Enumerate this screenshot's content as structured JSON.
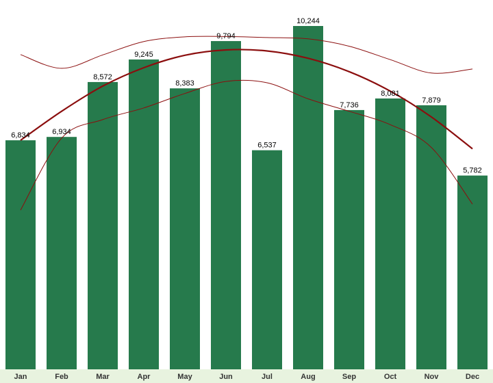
{
  "chart_data": {
    "type": "bar",
    "categories": [
      "Jan",
      "Feb",
      "Mar",
      "Apr",
      "May",
      "Jun",
      "Jul",
      "Aug",
      "Sep",
      "Oct",
      "Nov",
      "Dec"
    ],
    "values": [
      6834,
      6934,
      8572,
      9245,
      8383,
      9794,
      6537,
      10244,
      7736,
      8081,
      7879,
      5782
    ],
    "value_labels": [
      "6,834",
      "6,934",
      "8,572",
      "9,245",
      "8,383",
      "9,794",
      "6,537",
      "10,244",
      "7,736",
      "8,081",
      "7,879",
      "5,782"
    ],
    "trend": {
      "fit": [
        6834,
        7700,
        8450,
        9000,
        9370,
        9530,
        9500,
        9280,
        8880,
        8300,
        7530,
        6580
      ],
      "upper": [
        9390,
        8980,
        9380,
        9780,
        9920,
        9930,
        9900,
        9860,
        9640,
        9240,
        8840,
        8960
      ],
      "lower": [
        4750,
        6900,
        7450,
        7800,
        8230,
        8590,
        8550,
        8070,
        7700,
        7300,
        6620,
        4930
      ]
    },
    "ylim": [
      0,
      10500
    ],
    "grid": false,
    "legend": "none",
    "colors": {
      "bar": "#267a4c",
      "trend": "#8b0e0e",
      "axis_band": "#e8f3df",
      "label": "#000000",
      "category_label": "#333333"
    }
  }
}
